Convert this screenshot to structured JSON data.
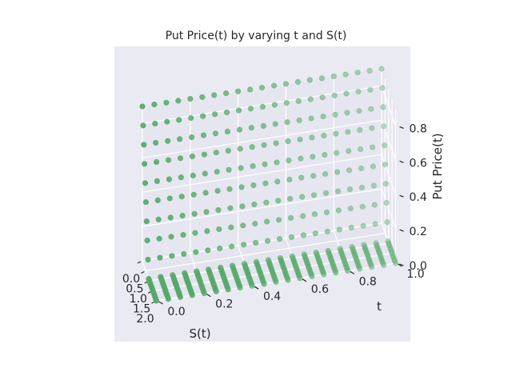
{
  "chart_data": {
    "type": "scatter3d",
    "title": "Put Price(t) by varying t and S(t)",
    "xlabel": "S(t)",
    "ylabel": "t",
    "zlabel": "Put Price(t)",
    "xlim": [
      0.0,
      2.0
    ],
    "ylim": [
      0.0,
      1.0
    ],
    "zlim": [
      0.0,
      0.9
    ],
    "x_ticks": [
      "0.0",
      "0.5",
      "1.0",
      "1.5",
      "2.0"
    ],
    "y_ticks": [
      "0.0",
      "0.2",
      "0.4",
      "0.6",
      "0.8",
      "1.0"
    ],
    "z_ticks": [
      "0.0",
      "0.2",
      "0.4",
      "0.6",
      "0.8"
    ],
    "grid": true,
    "marker_color": "#55a868",
    "pane_color": "#eaeaf2",
    "S": [
      0.0,
      0.1,
      0.2,
      0.3,
      0.4,
      0.5,
      0.6,
      0.7,
      0.8,
      0.9,
      1.0,
      1.1,
      1.2,
      1.3,
      1.4,
      1.5,
      1.6,
      1.7,
      1.8,
      1.9,
      2.0
    ],
    "t": [
      0.0,
      0.05,
      0.1,
      0.15,
      0.2,
      0.25,
      0.3,
      0.35,
      0.4,
      0.45,
      0.5,
      0.55,
      0.6,
      0.65,
      0.7,
      0.75,
      0.8,
      0.85,
      0.9,
      0.95,
      1.0
    ],
    "strike": 0.9,
    "note_values": "price(S) = max(strike - S, 0), same for every t"
  }
}
